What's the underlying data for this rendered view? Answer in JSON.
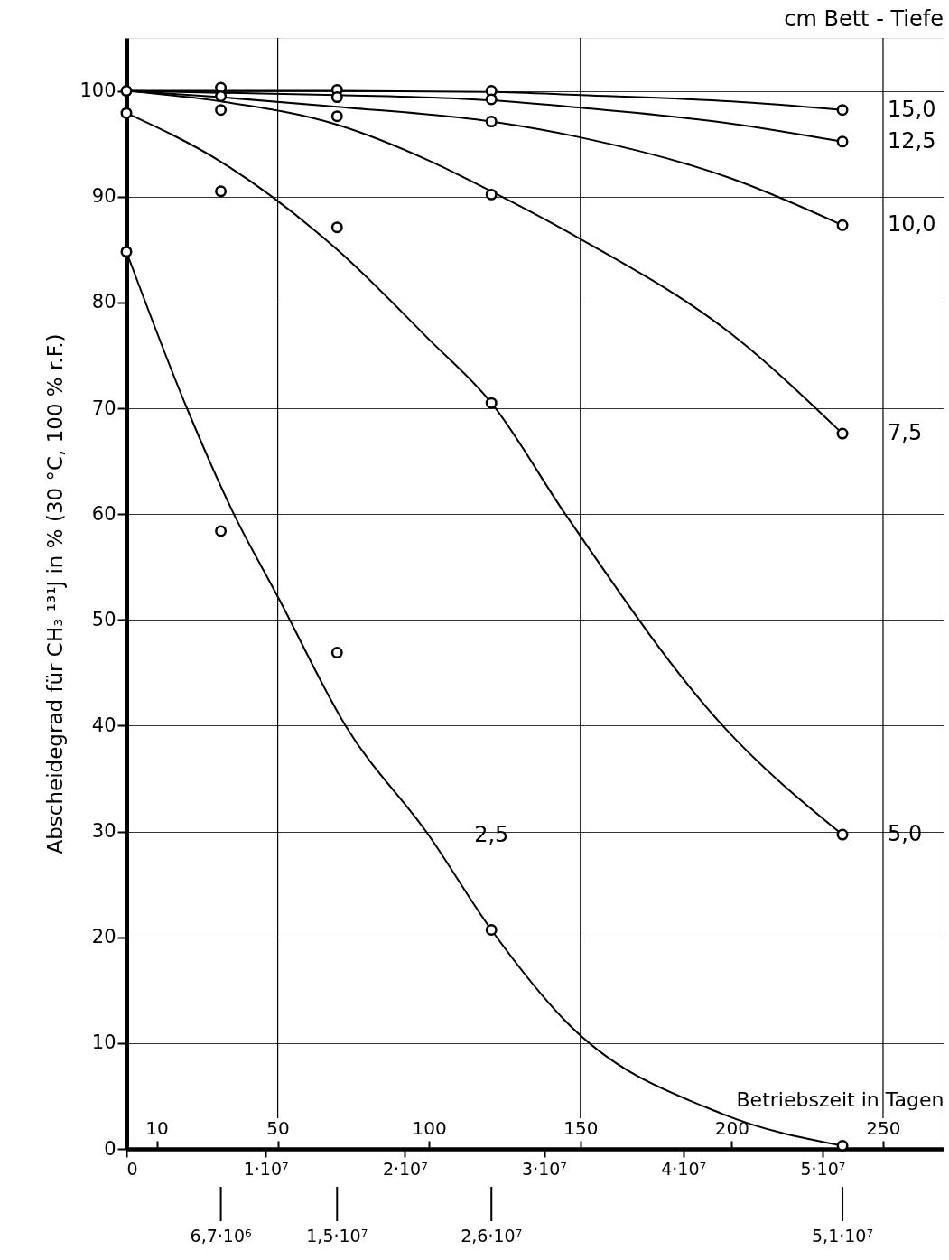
{
  "chart_data": {
    "type": "line",
    "xlabel": "Betriebszeit in Tagen",
    "ylabel": "Abscheidegrad für CH₃ ¹³¹J in % (30 °C, 100 % r.F.)",
    "xlim": [
      0,
      270
    ],
    "xticks": [
      10,
      50,
      100,
      150,
      200,
      250
    ],
    "x2lim": [
      0,
      58700000
    ],
    "x2ticks": [
      0,
      {
        "value": 10000000,
        "label": "1·10⁷"
      },
      {
        "value": 20000000,
        "label": "2·10⁷"
      },
      {
        "value": 30000000,
        "label": "3·10⁷"
      },
      {
        "value": 40000000,
        "label": "4·10⁷"
      },
      {
        "value": 50000000,
        "label": "5·10⁷"
      }
    ],
    "ylim": [
      0,
      105
    ],
    "yticks": [
      0,
      10,
      20,
      30,
      40,
      50,
      60,
      70,
      80,
      90,
      100
    ],
    "grid": "y",
    "line_style": "solid",
    "ref_lines": [
      {
        "axis": "x",
        "value": 50,
        "color": "#000000"
      },
      {
        "axis": "x",
        "value": 150,
        "color": "#000000"
      },
      {
        "axis": "x",
        "value": 250,
        "color": "#000000"
      }
    ],
    "series": [
      {
        "color": "#000000",
        "x": [
          0,
          69.6,
          120.6,
          150,
          200,
          236.6
        ],
        "values": [
          100,
          100,
          99.9,
          99.6,
          99,
          98.2
        ]
      },
      {
        "color": "#000000",
        "x": [
          0,
          69.6,
          120.6,
          150,
          200,
          236.6
        ],
        "values": [
          100,
          99.6,
          99.1,
          98.4,
          96.9,
          95.2
        ]
      },
      {
        "color": "#000000",
        "x": [
          0,
          31.2,
          69.6,
          120.6,
          150,
          200,
          236.6
        ],
        "values": [
          100,
          99.4,
          98.5,
          97.1,
          95.6,
          91.7,
          87.3
        ]
      },
      {
        "color": "#000000",
        "x": [
          0,
          31.2,
          69.6,
          100,
          120.6,
          150,
          200,
          236.6
        ],
        "values": [
          100,
          99,
          96.8,
          93.4,
          90.5,
          86,
          77,
          67.6
        ]
      },
      {
        "color": "#000000",
        "x": [
          0,
          31.2,
          69.6,
          100,
          120.6,
          145,
          197,
          236.6
        ],
        "values": [
          97.9,
          93.3,
          85,
          76.5,
          70.5,
          60,
          40,
          29.7
        ]
      },
      {
        "color": "#000000",
        "x": [
          0,
          20,
          35.5,
          50,
          72.4,
          100,
          120.6,
          145,
          197,
          236.6
        ],
        "values": [
          84.8,
          70,
          60,
          52.2,
          40,
          29.6,
          20.7,
          12.1,
          3.3,
          0.3
        ]
      },
      {
        "type": "scatter",
        "color": "#000000",
        "marker": "circle",
        "x": [
          0,
          0,
          0,
          31.2,
          31.2,
          31.2,
          31.2,
          31.2,
          69.6,
          69.6,
          69.6,
          69.6,
          69.6,
          120.6,
          120.6,
          120.6,
          120.6,
          120.6,
          120.6,
          236.6,
          236.6,
          236.6,
          236.6,
          236.6,
          236.6
        ],
        "values": [
          100,
          97.9,
          84.8,
          100.3,
          99.5,
          98.2,
          90.5,
          58.4,
          100.1,
          99.4,
          97.6,
          87.1,
          46.9,
          100,
          99.2,
          97.1,
          90.2,
          70.5,
          20.7,
          98.2,
          95.2,
          87.3,
          67.6,
          29.7,
          0.3
        ]
      }
    ],
    "annotations": [
      "cm Bett - Tiefe",
      {
        "text": "15,0",
        "x": 236.6,
        "y": 98.2
      },
      {
        "text": "12,5",
        "x": 236.6,
        "y": 95.2
      },
      {
        "text": "10,0",
        "x": 236.6,
        "y": 87.3
      },
      {
        "text": "7,5",
        "x": 236.6,
        "y": 67.6
      },
      {
        "text": "5,0",
        "x": 236.6,
        "y": 29.7
      },
      {
        "text": "2,5",
        "x": 100,
        "y": 29.6
      },
      {
        "text": "6,7·10⁶",
        "x": 31.2
      },
      {
        "text": "1,5·10⁷",
        "x": 69.6
      },
      {
        "text": "2,6·10⁷",
        "x": 120.6
      },
      {
        "text": "5,1·10⁷",
        "x": 236.6
      }
    ]
  }
}
